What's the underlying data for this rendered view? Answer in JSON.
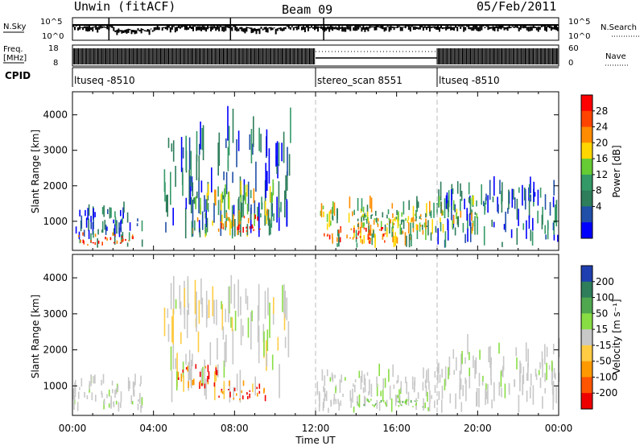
{
  "header": {
    "station": "Unwin (fitACF)",
    "beam": "Beam 09",
    "date": "05/Feb/2011"
  },
  "top_panels": {
    "nsky_label": "N.Sky",
    "nsky_ticks": [
      "10^5",
      "10^0"
    ],
    "nsearch_label": "N.Search",
    "nsearch_ticks": [
      "10^5",
      "10^0"
    ],
    "freq_label_1": "Freq.",
    "freq_label_2": "[MHz]",
    "freq_ticks": [
      "18",
      "8"
    ],
    "nave_label": "Nave",
    "nave_ticks": [
      "60",
      "0"
    ],
    "cpid_label": "CPID",
    "cpid_segments": [
      {
        "name": "ltuseq -8510",
        "start_h": 0,
        "end_h": 12
      },
      {
        "name": "stereo_scan 8551",
        "start_h": 12,
        "end_h": 18
      },
      {
        "name": "ltuseq -8510",
        "start_h": 18,
        "end_h": 24
      }
    ]
  },
  "chart_data": [
    {
      "type": "heatmap",
      "name": "Power",
      "xlabel": "",
      "ylabel": "Slant Range [km]",
      "xlim_hours": [
        0,
        24
      ],
      "ylim": [
        180,
        4650
      ],
      "y_ticks": [
        1000,
        2000,
        3000,
        4000
      ],
      "colorbar": {
        "label": "Power [dB]",
        "tick_labels": [
          "28",
          "24",
          "20",
          "16",
          "12",
          "8",
          "4"
        ],
        "colors": [
          "#ff0000",
          "#ff4400",
          "#ff8c00",
          "#ffd700",
          "#66cc33",
          "#339966",
          "#2e7d5b",
          "#1f4fa8",
          "#0000ff"
        ]
      },
      "regions": [
        {
          "t0": 0.0,
          "t1": 3.5,
          "r0": 250,
          "r1": 1250,
          "level": "weak"
        },
        {
          "t0": 0.2,
          "t1": 3.0,
          "r0": 300,
          "r1": 600,
          "level": "strong"
        },
        {
          "t0": 4.5,
          "t1": 10.8,
          "r0": 500,
          "r1": 3300,
          "level": "weak"
        },
        {
          "t0": 5.8,
          "t1": 10.0,
          "r0": 500,
          "r1": 1800,
          "level": "mid"
        },
        {
          "t0": 7.0,
          "t1": 9.3,
          "r0": 650,
          "r1": 1100,
          "level": "strong"
        },
        {
          "t0": 12.0,
          "t1": 18.0,
          "r0": 250,
          "r1": 1400,
          "level": "mid"
        },
        {
          "t0": 12.3,
          "t1": 15.5,
          "r0": 350,
          "r1": 800,
          "level": "strong"
        },
        {
          "t0": 14.0,
          "t1": 17.5,
          "r0": 800,
          "r1": 1200,
          "level": "mid"
        },
        {
          "t0": 18.0,
          "t1": 24.0,
          "r0": 250,
          "r1": 1800,
          "level": "weak"
        },
        {
          "t0": 18.0,
          "t1": 20.0,
          "r0": 600,
          "r1": 1500,
          "level": "mid"
        }
      ]
    },
    {
      "type": "heatmap",
      "name": "Velocity",
      "xlabel": "Time UT",
      "ylabel": "Slant Range [km]",
      "xlim_hours": [
        0,
        24
      ],
      "ylim": [
        180,
        4650
      ],
      "y_ticks": [
        1000,
        2000,
        3000,
        4000
      ],
      "x_tick_labels": [
        "00:00",
        "04:00",
        "08:00",
        "12:00",
        "16:00",
        "20:00",
        "00:00"
      ],
      "colorbar": {
        "label": "Velocity [m s⁻¹]",
        "tick_labels": [
          "200",
          "100",
          "50",
          "15",
          "-15",
          "-50",
          "-100",
          "-200"
        ],
        "colors": [
          "#1f3fb0",
          "#2e7d5b",
          "#4fa84f",
          "#88dd44",
          "#c8c8c8",
          "#ffcc44",
          "#ff9900",
          "#ff5500",
          "#ee0000"
        ]
      },
      "regions": [
        {
          "t0": 0.0,
          "t1": 3.5,
          "r0": 250,
          "r1": 1100,
          "level": "ground"
        },
        {
          "t0": 4.5,
          "t1": 10.8,
          "r0": 500,
          "r1": 3300,
          "level": "mixed"
        },
        {
          "t0": 5.0,
          "t1": 7.2,
          "r0": 900,
          "r1": 1500,
          "level": "negative"
        },
        {
          "t0": 7.2,
          "t1": 9.5,
          "r0": 550,
          "r1": 1000,
          "level": "negative"
        },
        {
          "t0": 12.0,
          "t1": 18.0,
          "r0": 250,
          "r1": 1300,
          "level": "ground"
        },
        {
          "t0": 14.0,
          "t1": 17.5,
          "r0": 400,
          "r1": 600,
          "level": "positive"
        },
        {
          "t0": 18.0,
          "t1": 24.0,
          "r0": 250,
          "r1": 1900,
          "level": "ground"
        }
      ]
    }
  ]
}
